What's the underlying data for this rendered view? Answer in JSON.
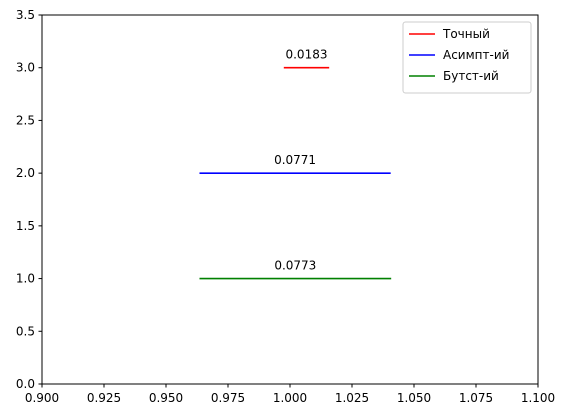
{
  "chart_data": {
    "type": "line",
    "xlim": [
      0.9,
      1.1
    ],
    "ylim": [
      0,
      3.5
    ],
    "x_ticks": [
      "0.900",
      "0.925",
      "0.950",
      "0.975",
      "1.000",
      "1.025",
      "1.050",
      "1.075",
      "1.100"
    ],
    "y_ticks": [
      "0.0",
      "0.5",
      "1.0",
      "1.5",
      "2.0",
      "2.5",
      "3.0",
      "3.5"
    ],
    "grid": false,
    "legend_position": "top-right",
    "series": [
      {
        "name": "Точный",
        "color": "#ff0000",
        "y": 3,
        "x": [
          0.9975,
          1.0158
        ],
        "label": "0.0183"
      },
      {
        "name": "Асимпт-ий",
        "color": "#0000ff",
        "y": 2,
        "x": [
          0.9635,
          1.0406
        ],
        "label": "0.0771"
      },
      {
        "name": "Бутст-ий",
        "color": "#008000",
        "y": 1,
        "x": [
          0.9635,
          1.0408
        ],
        "label": "0.0773"
      }
    ]
  }
}
